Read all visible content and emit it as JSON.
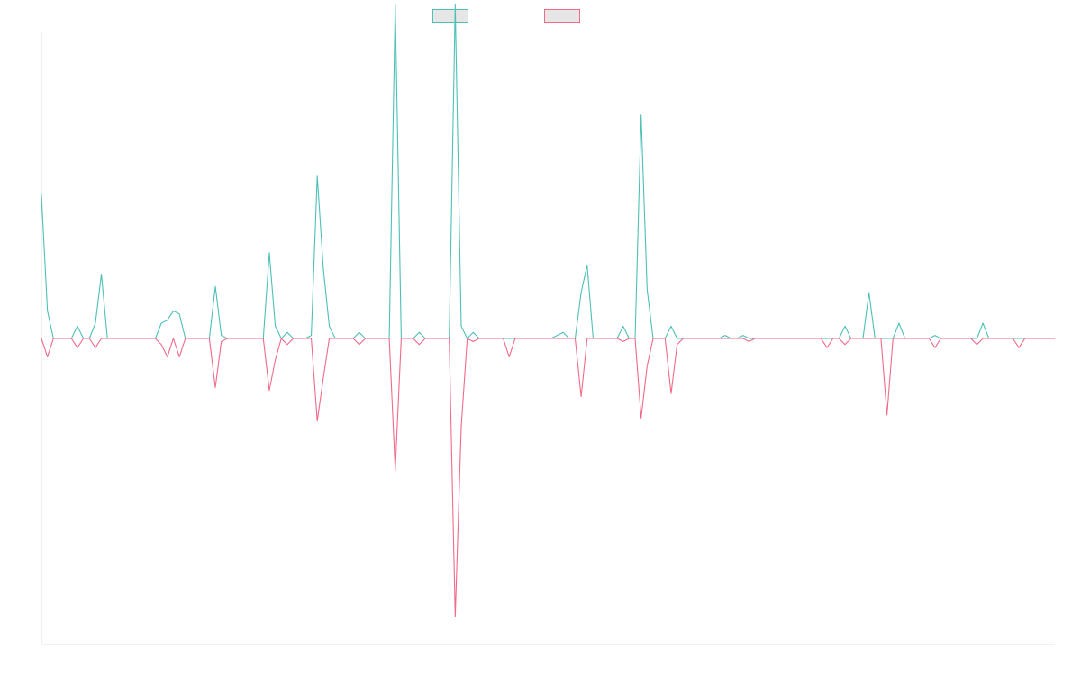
{
  "chart_data": {
    "type": "line",
    "title": "",
    "xlabel": "",
    "ylabel": "",
    "grid": false,
    "legend": "top-center",
    "x_count": 170,
    "ylim": [
      -100,
      100
    ],
    "series": [
      {
        "color": "#4dc0b8",
        "points": [
          [
            0,
            47
          ],
          [
            1,
            9
          ],
          [
            3,
            0
          ],
          [
            6,
            4
          ],
          [
            9,
            5
          ],
          [
            10,
            21
          ],
          [
            20,
            5
          ],
          [
            21,
            6
          ],
          [
            22,
            9
          ],
          [
            23,
            8
          ],
          [
            29,
            17
          ],
          [
            30,
            1
          ],
          [
            38,
            28
          ],
          [
            39,
            4
          ],
          [
            41,
            2
          ],
          [
            45,
            1
          ],
          [
            46,
            53
          ],
          [
            47,
            23
          ],
          [
            48,
            4
          ],
          [
            53,
            2
          ],
          [
            59,
            109
          ],
          [
            63,
            2
          ],
          [
            69,
            109
          ],
          [
            70,
            4
          ],
          [
            72,
            2
          ],
          [
            86,
            1
          ],
          [
            87,
            2
          ],
          [
            90,
            15
          ],
          [
            91,
            24
          ],
          [
            97,
            4
          ],
          [
            100,
            73
          ],
          [
            101,
            16
          ],
          [
            105,
            4
          ],
          [
            108,
            0
          ],
          [
            114,
            1
          ],
          [
            117,
            1
          ],
          [
            123,
            0
          ],
          [
            131,
            0
          ],
          [
            134,
            4
          ],
          [
            138,
            15
          ],
          [
            143,
            5
          ],
          [
            149,
            1
          ],
          [
            157,
            5
          ]
        ]
      },
      {
        "color": "#f06a8a",
        "points": [
          [
            1,
            -6
          ],
          [
            6,
            -3
          ],
          [
            9,
            -3
          ],
          [
            20,
            -2
          ],
          [
            21,
            -6
          ],
          [
            23,
            -6
          ],
          [
            29,
            -16
          ],
          [
            30,
            -1
          ],
          [
            38,
            -17
          ],
          [
            39,
            -7
          ],
          [
            41,
            -2
          ],
          [
            46,
            -27
          ],
          [
            47,
            -13
          ],
          [
            53,
            -2
          ],
          [
            59,
            -43
          ],
          [
            63,
            -2
          ],
          [
            69,
            -91
          ],
          [
            70,
            -29
          ],
          [
            72,
            -1
          ],
          [
            78,
            -6
          ],
          [
            90,
            -19
          ],
          [
            97,
            -1
          ],
          [
            100,
            -26
          ],
          [
            101,
            -9
          ],
          [
            105,
            -18
          ],
          [
            106,
            -2
          ],
          [
            118,
            -1
          ],
          [
            131,
            -3
          ],
          [
            134,
            -2
          ],
          [
            141,
            -25
          ],
          [
            149,
            -3
          ],
          [
            156,
            -2
          ],
          [
            163,
            -3
          ]
        ]
      }
    ]
  }
}
